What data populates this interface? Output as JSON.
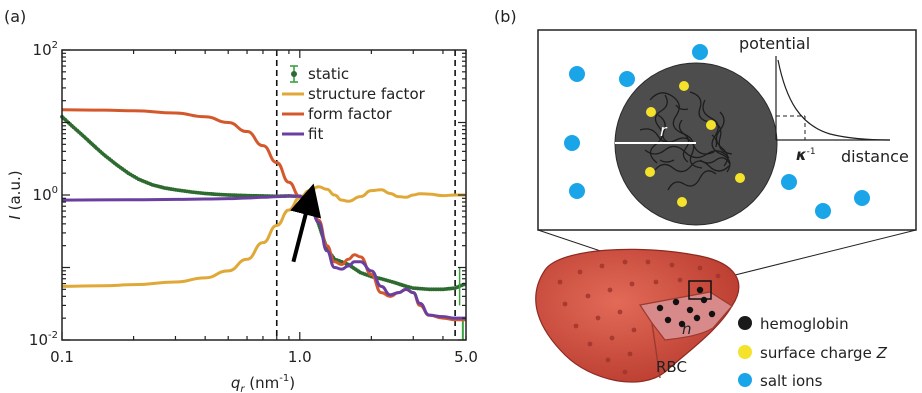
{
  "panel_a_label": "(a)",
  "panel_b_label": "(b)",
  "chart_data": {
    "type": "line",
    "xscale": "log",
    "yscale": "log",
    "xlim": [
      0.1,
      5.0
    ],
    "ylim": [
      0.01,
      100
    ],
    "xticks": [
      {
        "value": 0.1,
        "label": "0.1"
      },
      {
        "value": 1.0,
        "label": "1.0"
      },
      {
        "value": 5.0,
        "label": "5.0"
      }
    ],
    "yticks": [
      {
        "value": 0.01,
        "base": "10",
        "exp": "-2"
      },
      {
        "value": 1,
        "base": "10",
        "exp": "0"
      },
      {
        "value": 100,
        "base": "10",
        "exp": "2"
      }
    ],
    "xlabel": {
      "main": "q",
      "sub": "r",
      "unit_pre": " (nm",
      "unit_exp": "-1",
      "unit_post": ")"
    },
    "ylabel": {
      "italic": "I",
      "rest": " (a.u.)"
    },
    "vlines": [
      0.8,
      4.5
    ],
    "annotation_arrow": {
      "from": [
        0.94,
        0.12
      ],
      "to": [
        1.1,
        0.88
      ]
    },
    "legend_position": "top-right",
    "series": [
      {
        "name": "static",
        "color": "#2e6b30",
        "style": "markers",
        "x": [
          0.1,
          0.11,
          0.12,
          0.13,
          0.14,
          0.15,
          0.17,
          0.19,
          0.21,
          0.24,
          0.27,
          0.3,
          0.35,
          0.4,
          0.45,
          0.5,
          0.6,
          0.7,
          0.8,
          0.9,
          1.0,
          1.05,
          1.1,
          1.2,
          1.3,
          1.4,
          1.5,
          1.6,
          1.8,
          2.0,
          2.2,
          2.5,
          2.8,
          3.0,
          3.5,
          4.0,
          4.5,
          5.0
        ],
        "y": [
          12,
          9,
          7,
          5.5,
          4.4,
          3.6,
          2.6,
          2.0,
          1.65,
          1.38,
          1.25,
          1.18,
          1.1,
          1.05,
          1.02,
          1.0,
          0.98,
          0.97,
          0.96,
          0.97,
          0.96,
          0.94,
          0.8,
          0.4,
          0.18,
          0.13,
          0.12,
          0.11,
          0.085,
          0.075,
          0.07,
          0.062,
          0.055,
          0.052,
          0.05,
          0.05,
          0.052,
          0.06
        ]
      },
      {
        "name": "structure factor",
        "color": "#e0a837",
        "style": "line",
        "x": [
          0.1,
          0.15,
          0.2,
          0.3,
          0.4,
          0.5,
          0.6,
          0.7,
          0.8,
          0.9,
          1.0,
          1.1,
          1.2,
          1.3,
          1.4,
          1.5,
          1.6,
          1.8,
          2.0,
          2.2,
          2.4,
          2.6,
          2.8,
          3.0,
          3.2,
          3.5,
          4.0,
          4.5,
          5.0
        ],
        "y": [
          0.055,
          0.056,
          0.058,
          0.063,
          0.072,
          0.09,
          0.13,
          0.22,
          0.38,
          0.62,
          0.92,
          1.15,
          1.3,
          1.2,
          1.0,
          0.85,
          0.82,
          0.95,
          1.15,
          1.18,
          1.05,
          0.95,
          0.93,
          1.0,
          1.04,
          1.03,
          0.98,
          1.0,
          1.0
        ]
      },
      {
        "name": "form factor",
        "color": "#d4582c",
        "style": "line",
        "x": [
          0.1,
          0.15,
          0.2,
          0.3,
          0.4,
          0.5,
          0.6,
          0.7,
          0.8,
          0.9,
          1.0,
          1.1,
          1.2,
          1.3,
          1.4,
          1.5,
          1.6,
          1.7,
          1.8,
          2.0,
          2.2,
          2.4,
          2.6,
          2.8,
          3.0,
          3.2,
          3.5,
          4.0,
          4.5,
          5.0
        ],
        "y": [
          15,
          14.8,
          14.5,
          13.5,
          12,
          10,
          7.5,
          4.8,
          2.8,
          1.5,
          0.95,
          0.72,
          0.45,
          0.2,
          0.12,
          0.11,
          0.13,
          0.15,
          0.14,
          0.08,
          0.045,
          0.04,
          0.045,
          0.05,
          0.045,
          0.03,
          0.022,
          0.02,
          0.019,
          0.019
        ]
      },
      {
        "name": "fit",
        "color": "#6a3fa0",
        "style": "line",
        "x": [
          0.1,
          0.2,
          0.3,
          0.4,
          0.5,
          0.6,
          0.7,
          0.8,
          0.9,
          1.0,
          1.1,
          1.2,
          1.3,
          1.4,
          1.5,
          1.6,
          1.7,
          1.8,
          2.0,
          2.2,
          2.4,
          2.6,
          2.8,
          3.0,
          3.2,
          3.5,
          4.0,
          4.5,
          5.0
        ],
        "y": [
          0.85,
          0.86,
          0.87,
          0.88,
          0.89,
          0.91,
          0.93,
          0.95,
          0.97,
          0.96,
          0.8,
          0.42,
          0.17,
          0.1,
          0.095,
          0.105,
          0.12,
          0.12,
          0.09,
          0.055,
          0.042,
          0.045,
          0.05,
          0.045,
          0.032,
          0.022,
          0.021,
          0.02,
          0.02
        ]
      }
    ]
  },
  "diagram_b": {
    "radius_label": "r",
    "density_label": "n",
    "cell_label": "RBC",
    "inset": {
      "ylabel": "potential",
      "xlabel": "distance",
      "kappa_main": "κ",
      "kappa_exp": "-1"
    },
    "legend": [
      {
        "label": "hemoglobin",
        "color": "#1a1a1a"
      },
      {
        "label": "surface charge ",
        "italic": "Z",
        "color": "#f5e22a"
      },
      {
        "label": "salt ions",
        "color": "#1aa5e8"
      }
    ],
    "colors": {
      "ion": "#1aa5e8",
      "charge": "#f5e22a",
      "sphere": "#4d4d4d",
      "cell": "#c8473a",
      "cell_cut": "#d88a8a"
    }
  }
}
